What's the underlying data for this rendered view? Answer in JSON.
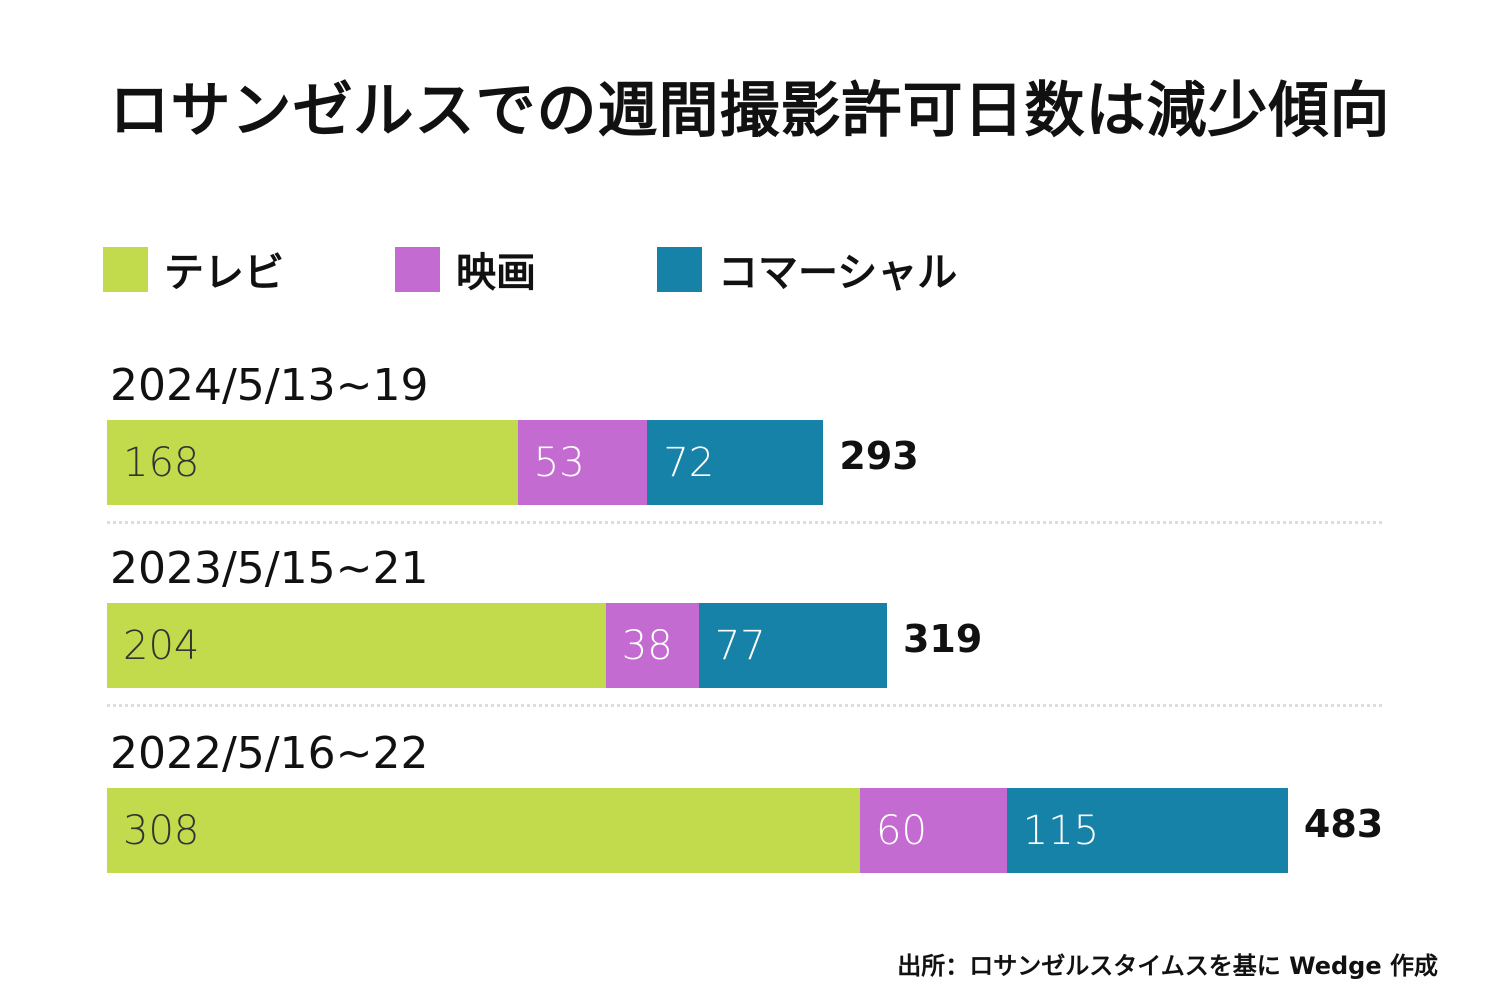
{
  "chart_data": {
    "type": "bar",
    "orientation": "horizontal-stacked",
    "title": "ロサンゼルスでの週間撮影許可日数は減少傾向",
    "legend": [
      {
        "name": "テレビ",
        "color": "#c2db4c"
      },
      {
        "name": "映画",
        "color": "#c46bd1"
      },
      {
        "name": "コマーシャル",
        "color": "#1782a8"
      }
    ],
    "legend_position": "top-left",
    "categories": [
      "2024/5/13~19",
      "2023/5/15~21",
      "2022/5/16~22"
    ],
    "series": [
      {
        "name": "テレビ",
        "values": [
          168,
          204,
          308
        ],
        "label_color": "#333333"
      },
      {
        "name": "映画",
        "values": [
          53,
          38,
          60
        ],
        "label_color": "#ffffff"
      },
      {
        "name": "コマーシャル",
        "values": [
          72,
          77,
          115
        ],
        "label_color": "#ffffff"
      }
    ],
    "totals": [
      293,
      319,
      483
    ],
    "source": "出所：ロサンゼルスタイムスを基に Wedge 作成"
  }
}
